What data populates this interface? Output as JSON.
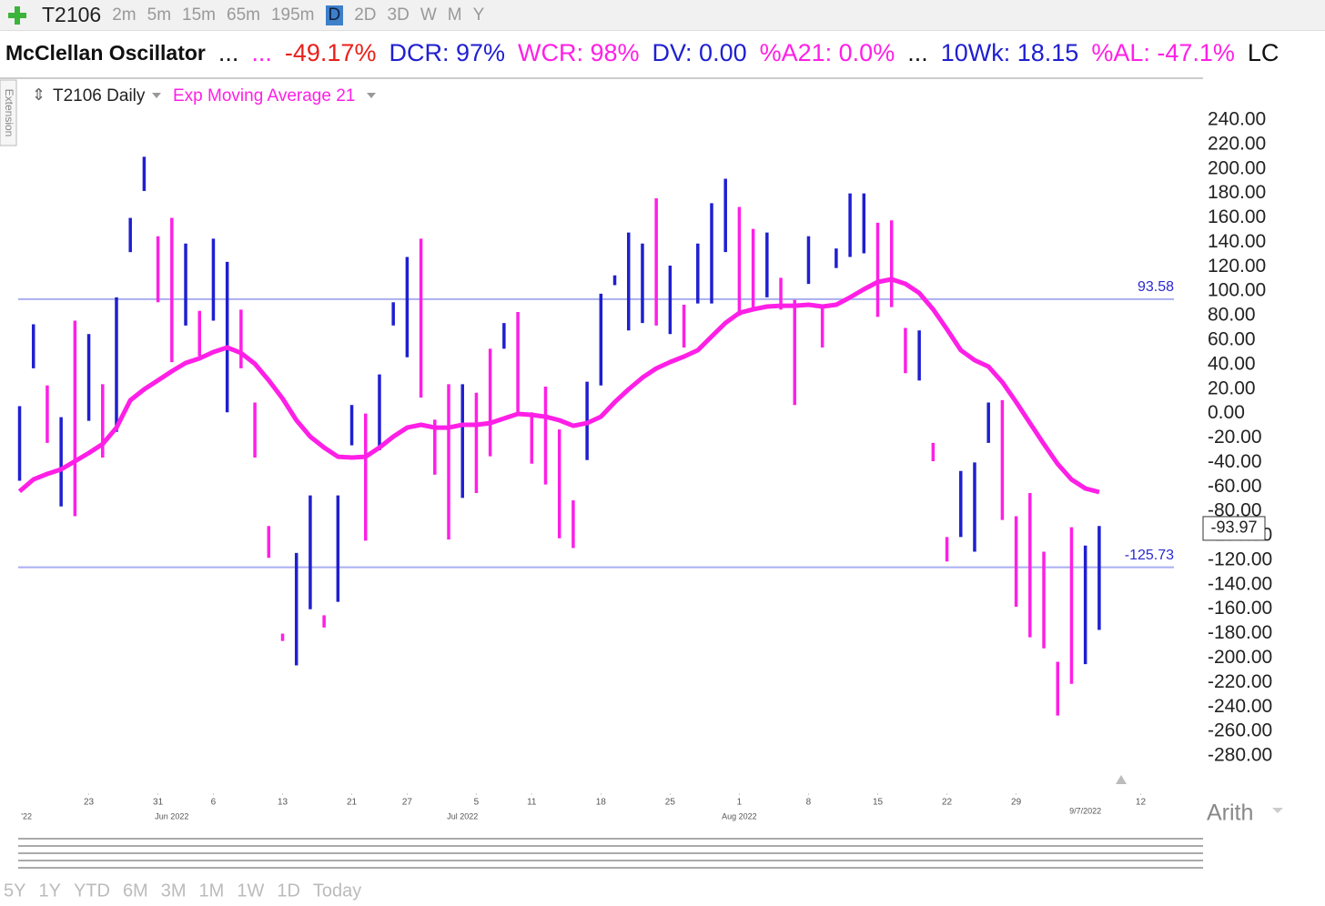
{
  "toolbar": {
    "symbol": "T2106",
    "timeframes": [
      "2m",
      "5m",
      "15m",
      "65m",
      "195m",
      "D",
      "2D",
      "3D",
      "W",
      "M",
      "Y"
    ],
    "active": "D"
  },
  "header": {
    "items": [
      {
        "text": "McClellan Oscillator",
        "color": "#111111"
      },
      {
        "text": "...",
        "color": "#111111"
      },
      {
        "text": "...",
        "color": "#ff1fe6"
      },
      {
        "text": "-49.17%",
        "color": "#e8201c"
      },
      {
        "text": "DCR: 97%",
        "color": "#1f1fd0"
      },
      {
        "text": "WCR: 98%",
        "color": "#ff1fe6"
      },
      {
        "text": "DV: 0.00",
        "color": "#1f1fd0"
      },
      {
        "text": "%A21: 0.0%",
        "color": "#ff1fe6"
      },
      {
        "text": "...",
        "color": "#111111"
      },
      {
        "text": "10Wk: 18.15",
        "color": "#1f1fd0"
      },
      {
        "text": "%AL: -47.1%",
        "color": "#ff1fe6"
      },
      {
        "text": "LC",
        "color": "#111111"
      }
    ]
  },
  "side_tab": "Extension",
  "scale_mode": "Arith",
  "footer": {
    "ranges": [
      "5Y",
      "1Y",
      "YTD",
      "6M",
      "3M",
      "1M",
      "1W",
      "1D",
      "Today"
    ]
  },
  "chart_data": {
    "type": "ohlc",
    "legend": [
      "T2106 Daily",
      "Exp Moving Average 21"
    ],
    "xlim": [
      -0.1,
      83.4
    ],
    "xticks": [
      {
        "value": 5,
        "label": "23"
      },
      {
        "value": 10,
        "label": "31"
      },
      {
        "value": 14,
        "label": "6"
      },
      {
        "value": 19,
        "label": "13"
      },
      {
        "value": 24,
        "label": "21"
      },
      {
        "value": 28,
        "label": "27"
      },
      {
        "value": 33,
        "label": "5"
      },
      {
        "value": 37,
        "label": "11"
      },
      {
        "value": 42,
        "label": "18"
      },
      {
        "value": 47,
        "label": "25"
      },
      {
        "value": 52,
        "label": "1"
      },
      {
        "value": 57,
        "label": "8"
      },
      {
        "value": 62,
        "label": "15"
      },
      {
        "value": 67,
        "label": "22"
      },
      {
        "value": 72,
        "label": "29"
      },
      {
        "value": 81,
        "label": "12"
      }
    ],
    "period_labels": [
      {
        "value": 0.5,
        "label": "'22"
      },
      {
        "value": 11,
        "label": "Jun 2022"
      },
      {
        "value": 32,
        "label": "Jul 2022"
      },
      {
        "value": 52,
        "label": "Aug 2022"
      },
      {
        "value": 77,
        "label": "9/7/2022"
      }
    ],
    "ylim": [
      -280,
      240
    ],
    "yticks": [
      {
        "value": 240,
        "label": "240.00"
      },
      {
        "value": 220,
        "label": "220.00"
      },
      {
        "value": 200,
        "label": "200.00"
      },
      {
        "value": 180,
        "label": "180.00"
      },
      {
        "value": 160,
        "label": "160.00"
      },
      {
        "value": 140,
        "label": "140.00"
      },
      {
        "value": 120,
        "label": "120.00"
      },
      {
        "value": 100,
        "label": "100.00"
      },
      {
        "value": 80,
        "label": "80.00"
      },
      {
        "value": 60,
        "label": "60.00"
      },
      {
        "value": 40,
        "label": "40.00"
      },
      {
        "value": 20,
        "label": "20.00"
      },
      {
        "value": 0,
        "label": "0.00"
      },
      {
        "value": -20,
        "label": "-20.00"
      },
      {
        "value": -40,
        "label": "-40.00"
      },
      {
        "value": -60,
        "label": "-60.00"
      },
      {
        "value": -80,
        "label": "-80.00"
      },
      {
        "value": -100,
        "label": "-100.00"
      },
      {
        "value": -120,
        "label": "-120.00"
      },
      {
        "value": -140,
        "label": "-140.00"
      },
      {
        "value": -160,
        "label": "-160.00"
      },
      {
        "value": -180,
        "label": "-180.00"
      },
      {
        "value": -200,
        "label": "-200.00"
      },
      {
        "value": -220,
        "label": "-220.00"
      },
      {
        "value": -240,
        "label": "-240.00"
      },
      {
        "value": -260,
        "label": "-260.00"
      },
      {
        "value": -280,
        "label": "-280.00"
      }
    ],
    "hlines": [
      {
        "value": 93.58,
        "color": "#a9aef0"
      },
      {
        "value": -125.73,
        "color": "#a9aef0"
      }
    ],
    "last_value": -93.97,
    "bars": {
      "x": [
        0,
        1,
        2,
        3,
        4,
        5,
        6,
        7,
        8,
        9,
        10,
        11,
        12,
        13,
        14,
        15,
        16,
        17,
        18,
        19,
        20,
        21,
        22,
        23,
        24,
        25,
        26,
        27,
        28,
        29,
        30,
        31,
        32,
        33,
        34,
        35,
        36,
        37,
        38,
        39,
        40,
        41,
        42,
        43,
        44,
        45,
        46,
        47,
        48,
        49,
        50,
        51,
        52,
        53,
        54,
        55,
        56,
        57,
        58,
        59,
        60,
        61,
        62,
        63,
        64,
        65,
        66,
        67,
        68,
        69,
        70,
        71,
        72,
        73,
        74,
        75,
        76,
        77,
        78
      ],
      "high": [
        6,
        73,
        23,
        -3,
        76,
        65,
        24,
        95,
        160,
        210,
        145,
        160,
        139,
        84,
        143,
        124,
        85,
        9,
        -92,
        -180,
        -114,
        -67,
        -165,
        -67,
        7,
        0,
        32,
        91,
        128,
        143,
        -5,
        24,
        24,
        17,
        53,
        74,
        83,
        1,
        22,
        -13,
        -71,
        26,
        98,
        113,
        148,
        139,
        176,
        121,
        89,
        139,
        172,
        192,
        169,
        151,
        148,
        111,
        93,
        145,
        87,
        135,
        180,
        180,
        156,
        158,
        70,
        68,
        -24,
        -101,
        -47,
        -40,
        9,
        11,
        -84,
        -65,
        -113,
        -203,
        -93,
        -108,
        -92
      ],
      "low": [
        -55,
        37,
        -24,
        -76,
        -84,
        -6,
        -36,
        -15,
        132,
        182,
        91,
        42,
        72,
        47,
        76,
        1,
        37,
        -36,
        -118,
        -186,
        -206,
        -160,
        -175,
        -154,
        -26,
        -104,
        -30,
        72,
        46,
        13,
        -50,
        -103,
        -69,
        -65,
        -35,
        53,
        0,
        -41,
        -58,
        -102,
        -110,
        -38,
        23,
        105,
        68,
        74,
        72,
        65,
        54,
        90,
        90,
        132,
        80,
        84,
        95,
        85,
        7,
        106,
        54,
        119,
        128,
        131,
        79,
        87,
        33,
        27,
        -39,
        -121,
        -101,
        -113,
        -24,
        -87,
        -158,
        -183,
        -192,
        -247,
        -221,
        -205,
        -177
      ],
      "colors": [
        "#1f1fd0",
        "#1f1fd0",
        "#ff1fe6",
        "#1f1fd0",
        "#ff1fe6",
        "#1f1fd0",
        "#ff1fe6",
        "#1f1fd0",
        "#1f1fd0",
        "#1f1fd0",
        "#ff1fe6",
        "#ff1fe6",
        "#1f1fd0",
        "#ff1fe6",
        "#1f1fd0",
        "#1f1fd0",
        "#ff1fe6",
        "#ff1fe6",
        "#ff1fe6",
        "#ff1fe6",
        "#1f1fd0",
        "#1f1fd0",
        "#ff1fe6",
        "#1f1fd0",
        "#1f1fd0",
        "#ff1fe6",
        "#1f1fd0",
        "#1f1fd0",
        "#1f1fd0",
        "#ff1fe6",
        "#ff1fe6",
        "#ff1fe6",
        "#1f1fd0",
        "#ff1fe6",
        "#ff1fe6",
        "#1f1fd0",
        "#ff1fe6",
        "#ff1fe6",
        "#ff1fe6",
        "#ff1fe6",
        "#ff1fe6",
        "#1f1fd0",
        "#1f1fd0",
        "#1f1fd0",
        "#1f1fd0",
        "#1f1fd0",
        "#ff1fe6",
        "#1f1fd0",
        "#ff1fe6",
        "#1f1fd0",
        "#1f1fd0",
        "#1f1fd0",
        "#ff1fe6",
        "#ff1fe6",
        "#1f1fd0",
        "#ff1fe6",
        "#ff1fe6",
        "#1f1fd0",
        "#ff1fe6",
        "#1f1fd0",
        "#1f1fd0",
        "#1f1fd0",
        "#ff1fe6",
        "#ff1fe6",
        "#ff1fe6",
        "#1f1fd0",
        "#ff1fe6",
        "#ff1fe6",
        "#1f1fd0",
        "#1f1fd0",
        "#1f1fd0",
        "#ff1fe6",
        "#ff1fe6",
        "#ff1fe6",
        "#ff1fe6",
        "#ff1fe6",
        "#ff1fe6",
        "#1f1fd0",
        "#1f1fd0"
      ]
    },
    "series": [
      {
        "name": "Exp Moving Average 21",
        "color": "#ff1fe6",
        "values": [
          -63.6,
          -53.9,
          -49.4,
          -45.7,
          -39,
          -32.3,
          -24.9,
          -11.5,
          10.9,
          19.8,
          27.2,
          34.6,
          41.4,
          45.1,
          50.3,
          54,
          49.5,
          40.6,
          27.2,
          12.3,
          -5.5,
          -18.9,
          -27.8,
          -35.3,
          -36,
          -35.3,
          -27.8,
          -18.9,
          -11.5,
          -9.2,
          -11.5,
          -11.5,
          -9.2,
          -9.2,
          -7.8,
          -4,
          -0.3,
          -1.1,
          -2.6,
          -5.5,
          -10,
          -7.8,
          -2.6,
          9.3,
          19.8,
          29.4,
          36.9,
          42.1,
          46.6,
          51.8,
          63,
          74.1,
          82.3,
          85.2,
          87.5,
          88.2,
          88.2,
          89,
          87.5,
          89,
          95,
          101.6,
          107.6,
          109.8,
          106.1,
          98.6,
          85.2,
          68.9,
          51.8,
          43.6,
          38.4,
          25.7,
          9.4,
          -7.8,
          -24.9,
          -41.2,
          -53.9,
          -61.3,
          -64.3
        ]
      }
    ]
  }
}
